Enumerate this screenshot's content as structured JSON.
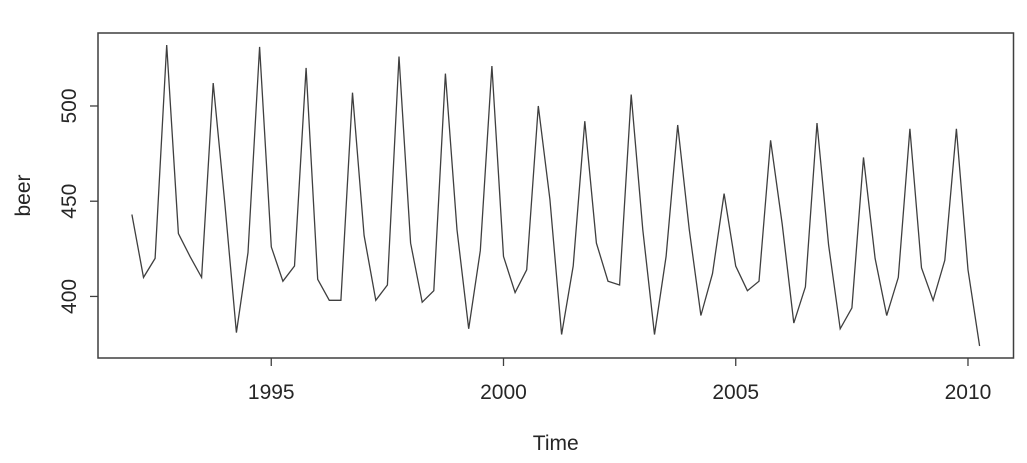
{
  "figure": {
    "background": "#ffffff",
    "description": "R base graphics line plot of quarterly beer production time series"
  },
  "chart_data": {
    "type": "line",
    "title": "",
    "xlabel": "Time",
    "ylabel": "beer",
    "series_name": "beer",
    "frequency": "quarterly",
    "x_start": 1992.0,
    "x_step": 0.25,
    "x_end": 2010.25,
    "values": [
      443,
      410,
      420,
      532,
      433,
      421,
      410,
      512,
      449,
      381,
      423,
      531,
      426,
      408,
      416,
      520,
      409,
      398,
      398,
      507,
      432,
      398,
      406,
      526,
      428,
      397,
      403,
      517,
      435,
      383,
      424,
      521,
      421,
      402,
      414,
      500,
      451,
      380,
      416,
      492,
      428,
      408,
      406,
      506,
      435,
      380,
      421,
      490,
      435,
      390,
      412,
      454,
      416,
      403,
      408,
      482,
      438,
      386,
      405,
      491,
      427,
      383,
      394,
      473,
      420,
      390,
      410,
      488,
      415,
      398,
      419,
      488,
      414,
      374
    ],
    "x_ticks": [
      1995,
      2000,
      2005,
      2010
    ],
    "y_ticks": [
      400,
      450,
      500
    ],
    "xlim": [
      1991.27,
      2010.98
    ],
    "ylim": [
      367.68,
      538.32
    ],
    "grid": false,
    "legend": null,
    "line_color": "#3f3f3f",
    "axis_color": "#3f3f3f",
    "text_color": "#262626"
  }
}
